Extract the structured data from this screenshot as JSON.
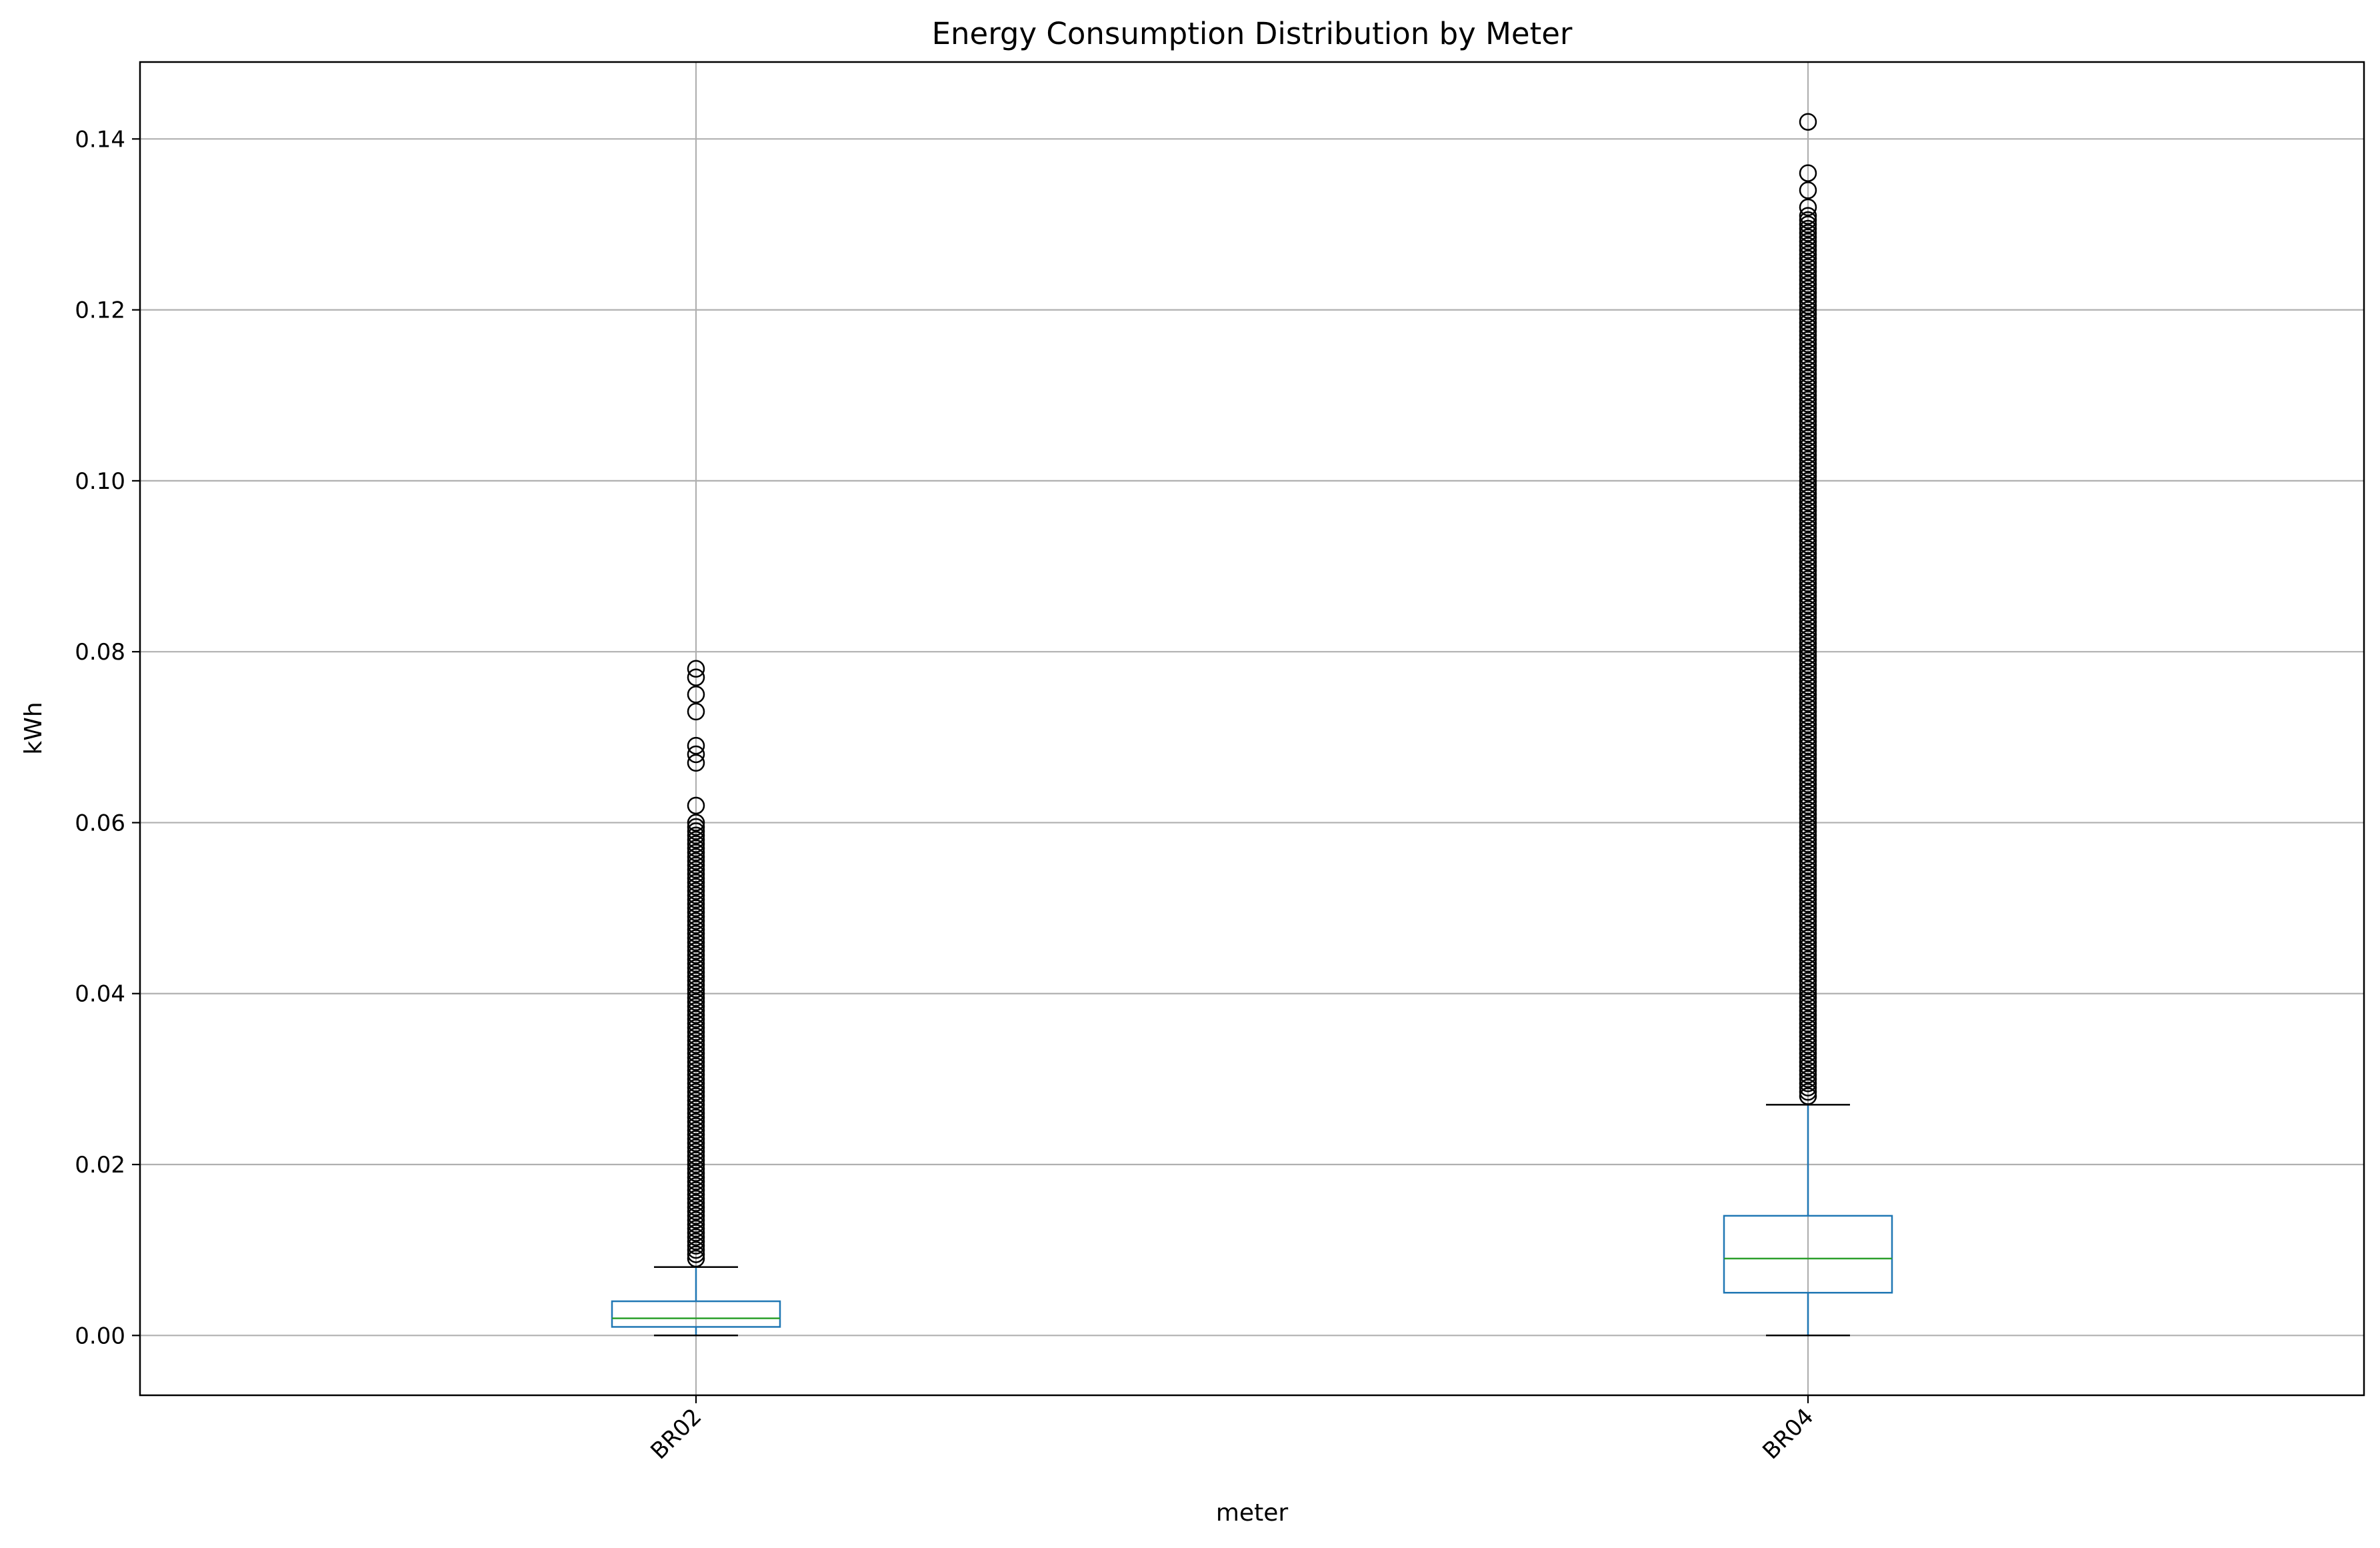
{
  "chart_data": {
    "type": "box",
    "title": "Energy Consumption Distribution by Meter",
    "xlabel": "meter",
    "ylabel": "kWh",
    "categories": [
      "BR02",
      "BR04"
    ],
    "ylim": [
      -0.007,
      0.149
    ],
    "yticks": [
      0.0,
      0.02,
      0.04,
      0.06,
      0.08,
      0.1,
      0.12,
      0.14
    ],
    "ytick_labels": [
      "0.00",
      "0.02",
      "0.04",
      "0.06",
      "0.08",
      "0.10",
      "0.12",
      "0.14"
    ],
    "grid": true,
    "xtick_rotation_deg": 45,
    "colors": {
      "box": "#1f77b4",
      "median": "#2ca02c",
      "whisker_cap": "#000000",
      "flier": "#000000",
      "grid": "#b0b0b0"
    },
    "boxes": [
      {
        "category": "BR02",
        "whisker_low": 0.0,
        "q1": 0.001,
        "median": 0.002,
        "q3": 0.004,
        "whisker_high": 0.008,
        "outliers_dense_range": [
          0.009,
          0.06
        ],
        "outliers_dense_step": 0.0005,
        "outliers_extra": [
          0.062,
          0.067,
          0.068,
          0.069,
          0.073,
          0.075,
          0.077,
          0.078
        ]
      },
      {
        "category": "BR04",
        "whisker_low": 0.0,
        "q1": 0.005,
        "median": 0.009,
        "q3": 0.014,
        "whisker_high": 0.027,
        "outliers_dense_range": [
          0.028,
          0.131
        ],
        "outliers_dense_step": 0.0005,
        "outliers_extra": [
          0.132,
          0.134,
          0.136,
          0.142
        ]
      }
    ]
  }
}
